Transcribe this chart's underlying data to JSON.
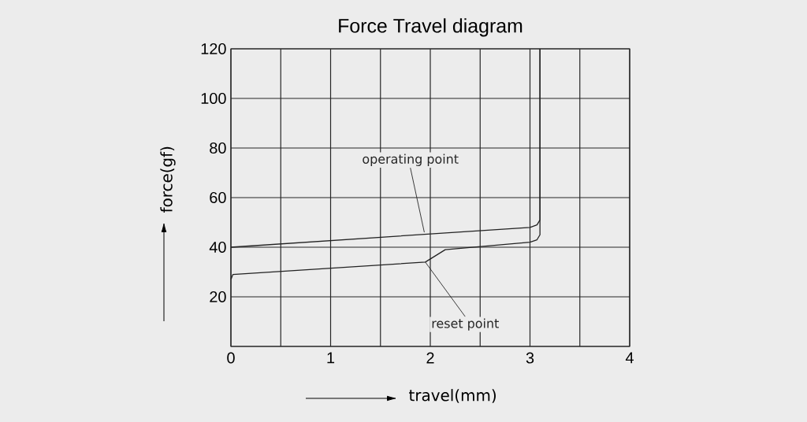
{
  "chart_data": {
    "type": "line",
    "title": "Force Travel diagram",
    "xlabel": "travel(mm)",
    "ylabel": "force(gf)",
    "xlim": [
      0,
      4
    ],
    "ylim": [
      0,
      120
    ],
    "xticks": [
      0,
      {
        "value": 0.5,
        "label": null
      },
      1,
      {
        "value": 1.5,
        "label": null
      },
      2,
      {
        "value": 2.5,
        "label": null
      },
      3,
      {
        "value": 3.5,
        "label": null
      },
      4
    ],
    "yticks": [
      {
        "value": 0,
        "label": null
      },
      20,
      40,
      60,
      80,
      100,
      120
    ],
    "grid": true,
    "line_style": "solid",
    "marker": "none",
    "series": [
      {
        "color": "#222222",
        "x": [
          0,
          3.0,
          3.07,
          3.1,
          3.1
        ],
        "values": [
          40,
          48,
          49,
          51,
          120
        ]
      },
      {
        "color": "#222222",
        "x": [
          3.1,
          3.1,
          3.07,
          3.0,
          2.15,
          1.95,
          0.02,
          0
        ],
        "values": [
          120,
          45,
          43,
          42,
          39,
          34,
          29,
          27
        ]
      }
    ],
    "annotations": [
      {
        "text": "operating point",
        "x": 1.94,
        "y": 46
      },
      {
        "text": "reset point",
        "x": 1.95,
        "y": 34
      }
    ]
  }
}
